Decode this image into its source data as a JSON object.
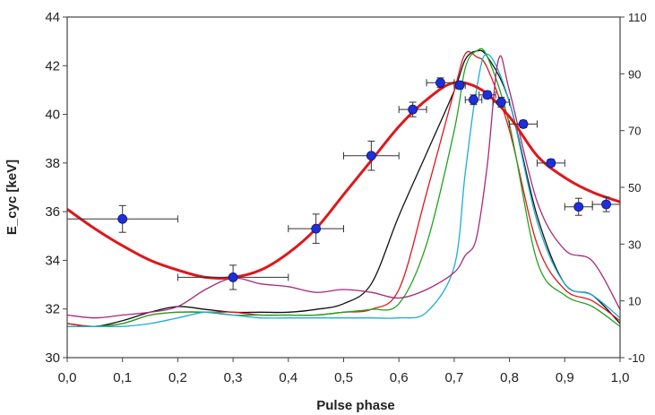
{
  "chart_data": {
    "type": "line",
    "title": "",
    "xlabel": "Pulse phase",
    "ylabel": "E_cyc  [keV]",
    "xlim": [
      0.0,
      1.0
    ],
    "ylim": [
      30,
      44
    ],
    "y2lim": [
      -10,
      110
    ],
    "x_ticks": [
      "0,0",
      "0,1",
      "0,2",
      "0,3",
      "0,4",
      "0,5",
      "0,6",
      "0,7",
      "0,8",
      "0,9",
      "1,0"
    ],
    "y_ticks": [
      "30",
      "32",
      "34",
      "36",
      "38",
      "40",
      "42",
      "44"
    ],
    "y2_ticks": [
      "-10",
      "10",
      "30",
      "50",
      "70",
      "90",
      "110"
    ],
    "grid": false,
    "legend": "none",
    "measurements": {
      "color": "#1f2fd6",
      "x": [
        0.1,
        0.3,
        0.45,
        0.55,
        0.625,
        0.675,
        0.71,
        0.735,
        0.76,
        0.785,
        0.825,
        0.875,
        0.925,
        0.975
      ],
      "y": [
        35.7,
        33.3,
        35.3,
        38.3,
        40.2,
        41.3,
        41.2,
        40.6,
        40.8,
        40.5,
        39.6,
        38.0,
        36.2,
        36.3
      ],
      "xerr": [
        0.1,
        0.1,
        0.05,
        0.05,
        0.025,
        0.025,
        0.01,
        0.015,
        0.015,
        0.015,
        0.025,
        0.025,
        0.025,
        0.025
      ],
      "yerr": [
        0.55,
        0.5,
        0.6,
        0.6,
        0.3,
        0.2,
        0.15,
        0.2,
        0.15,
        0.2,
        0.15,
        0.15,
        0.35,
        0.3
      ]
    },
    "fit": {
      "color": "#e0161b",
      "x": [
        0.0,
        0.05,
        0.1,
        0.15,
        0.2,
        0.25,
        0.3,
        0.35,
        0.4,
        0.45,
        0.5,
        0.55,
        0.6,
        0.65,
        0.7,
        0.75,
        0.8,
        0.85,
        0.9,
        0.95,
        1.0
      ],
      "y": [
        36.1,
        35.3,
        34.6,
        34.0,
        33.6,
        33.3,
        33.3,
        33.6,
        34.3,
        35.3,
        36.7,
        38.1,
        39.5,
        40.6,
        41.3,
        41.0,
        39.9,
        38.3,
        37.4,
        36.8,
        36.4
      ]
    },
    "series": [
      {
        "color": "#111111",
        "x": [
          0.0,
          0.05,
          0.1,
          0.15,
          0.2,
          0.25,
          0.3,
          0.35,
          0.4,
          0.45,
          0.5,
          0.55,
          0.6,
          0.65,
          0.7,
          0.72,
          0.74,
          0.76,
          0.8,
          0.85,
          0.9,
          0.95,
          1.0
        ],
        "y": [
          2,
          1,
          3,
          6,
          8,
          7,
          6,
          6,
          6,
          7,
          9,
          16,
          40,
          62,
          84,
          95,
          98,
          96,
          80,
          40,
          16,
          12,
          2
        ]
      },
      {
        "color": "#e0161b",
        "x": [
          0.0,
          0.05,
          0.1,
          0.15,
          0.2,
          0.25,
          0.3,
          0.35,
          0.4,
          0.45,
          0.5,
          0.55,
          0.6,
          0.65,
          0.7,
          0.72,
          0.74,
          0.76,
          0.8,
          0.85,
          0.9,
          0.95,
          1.0
        ],
        "y": [
          2,
          1,
          2,
          5,
          6,
          6,
          6,
          5,
          5,
          5,
          6,
          7,
          14,
          48,
          84,
          97,
          96,
          92,
          70,
          30,
          14,
          10,
          3
        ]
      },
      {
        "color": "#22a31f",
        "x": [
          0.0,
          0.05,
          0.1,
          0.15,
          0.2,
          0.25,
          0.3,
          0.35,
          0.4,
          0.45,
          0.5,
          0.55,
          0.6,
          0.65,
          0.7,
          0.72,
          0.74,
          0.76,
          0.8,
          0.85,
          0.9,
          0.95,
          1.0
        ],
        "y": [
          1,
          1,
          2,
          5,
          6,
          6,
          5,
          5,
          5,
          5,
          6,
          7,
          9,
          30,
          70,
          92,
          98,
          96,
          72,
          24,
          12,
          8,
          1
        ]
      },
      {
        "color": "#1aaed6",
        "x": [
          0.0,
          0.05,
          0.1,
          0.15,
          0.2,
          0.25,
          0.3,
          0.35,
          0.4,
          0.45,
          0.5,
          0.55,
          0.6,
          0.65,
          0.7,
          0.72,
          0.74,
          0.76,
          0.8,
          0.85,
          0.9,
          0.95,
          1.0
        ],
        "y": [
          1,
          1,
          1,
          2,
          4,
          6,
          5,
          4,
          4,
          4,
          4,
          4,
          4,
          6,
          22,
          55,
          84,
          97,
          80,
          38,
          16,
          12,
          4
        ]
      },
      {
        "color": "#a8287c",
        "x": [
          0.0,
          0.05,
          0.1,
          0.15,
          0.2,
          0.25,
          0.3,
          0.35,
          0.4,
          0.45,
          0.5,
          0.55,
          0.6,
          0.65,
          0.7,
          0.72,
          0.74,
          0.76,
          0.78,
          0.8,
          0.85,
          0.9,
          0.95,
          1.0
        ],
        "y": [
          5,
          4,
          5,
          6,
          8,
          14,
          18,
          16,
          15,
          13,
          14,
          13,
          11,
          14,
          20,
          26,
          32,
          58,
          95,
          84,
          45,
          28,
          24,
          7
        ]
      }
    ]
  }
}
